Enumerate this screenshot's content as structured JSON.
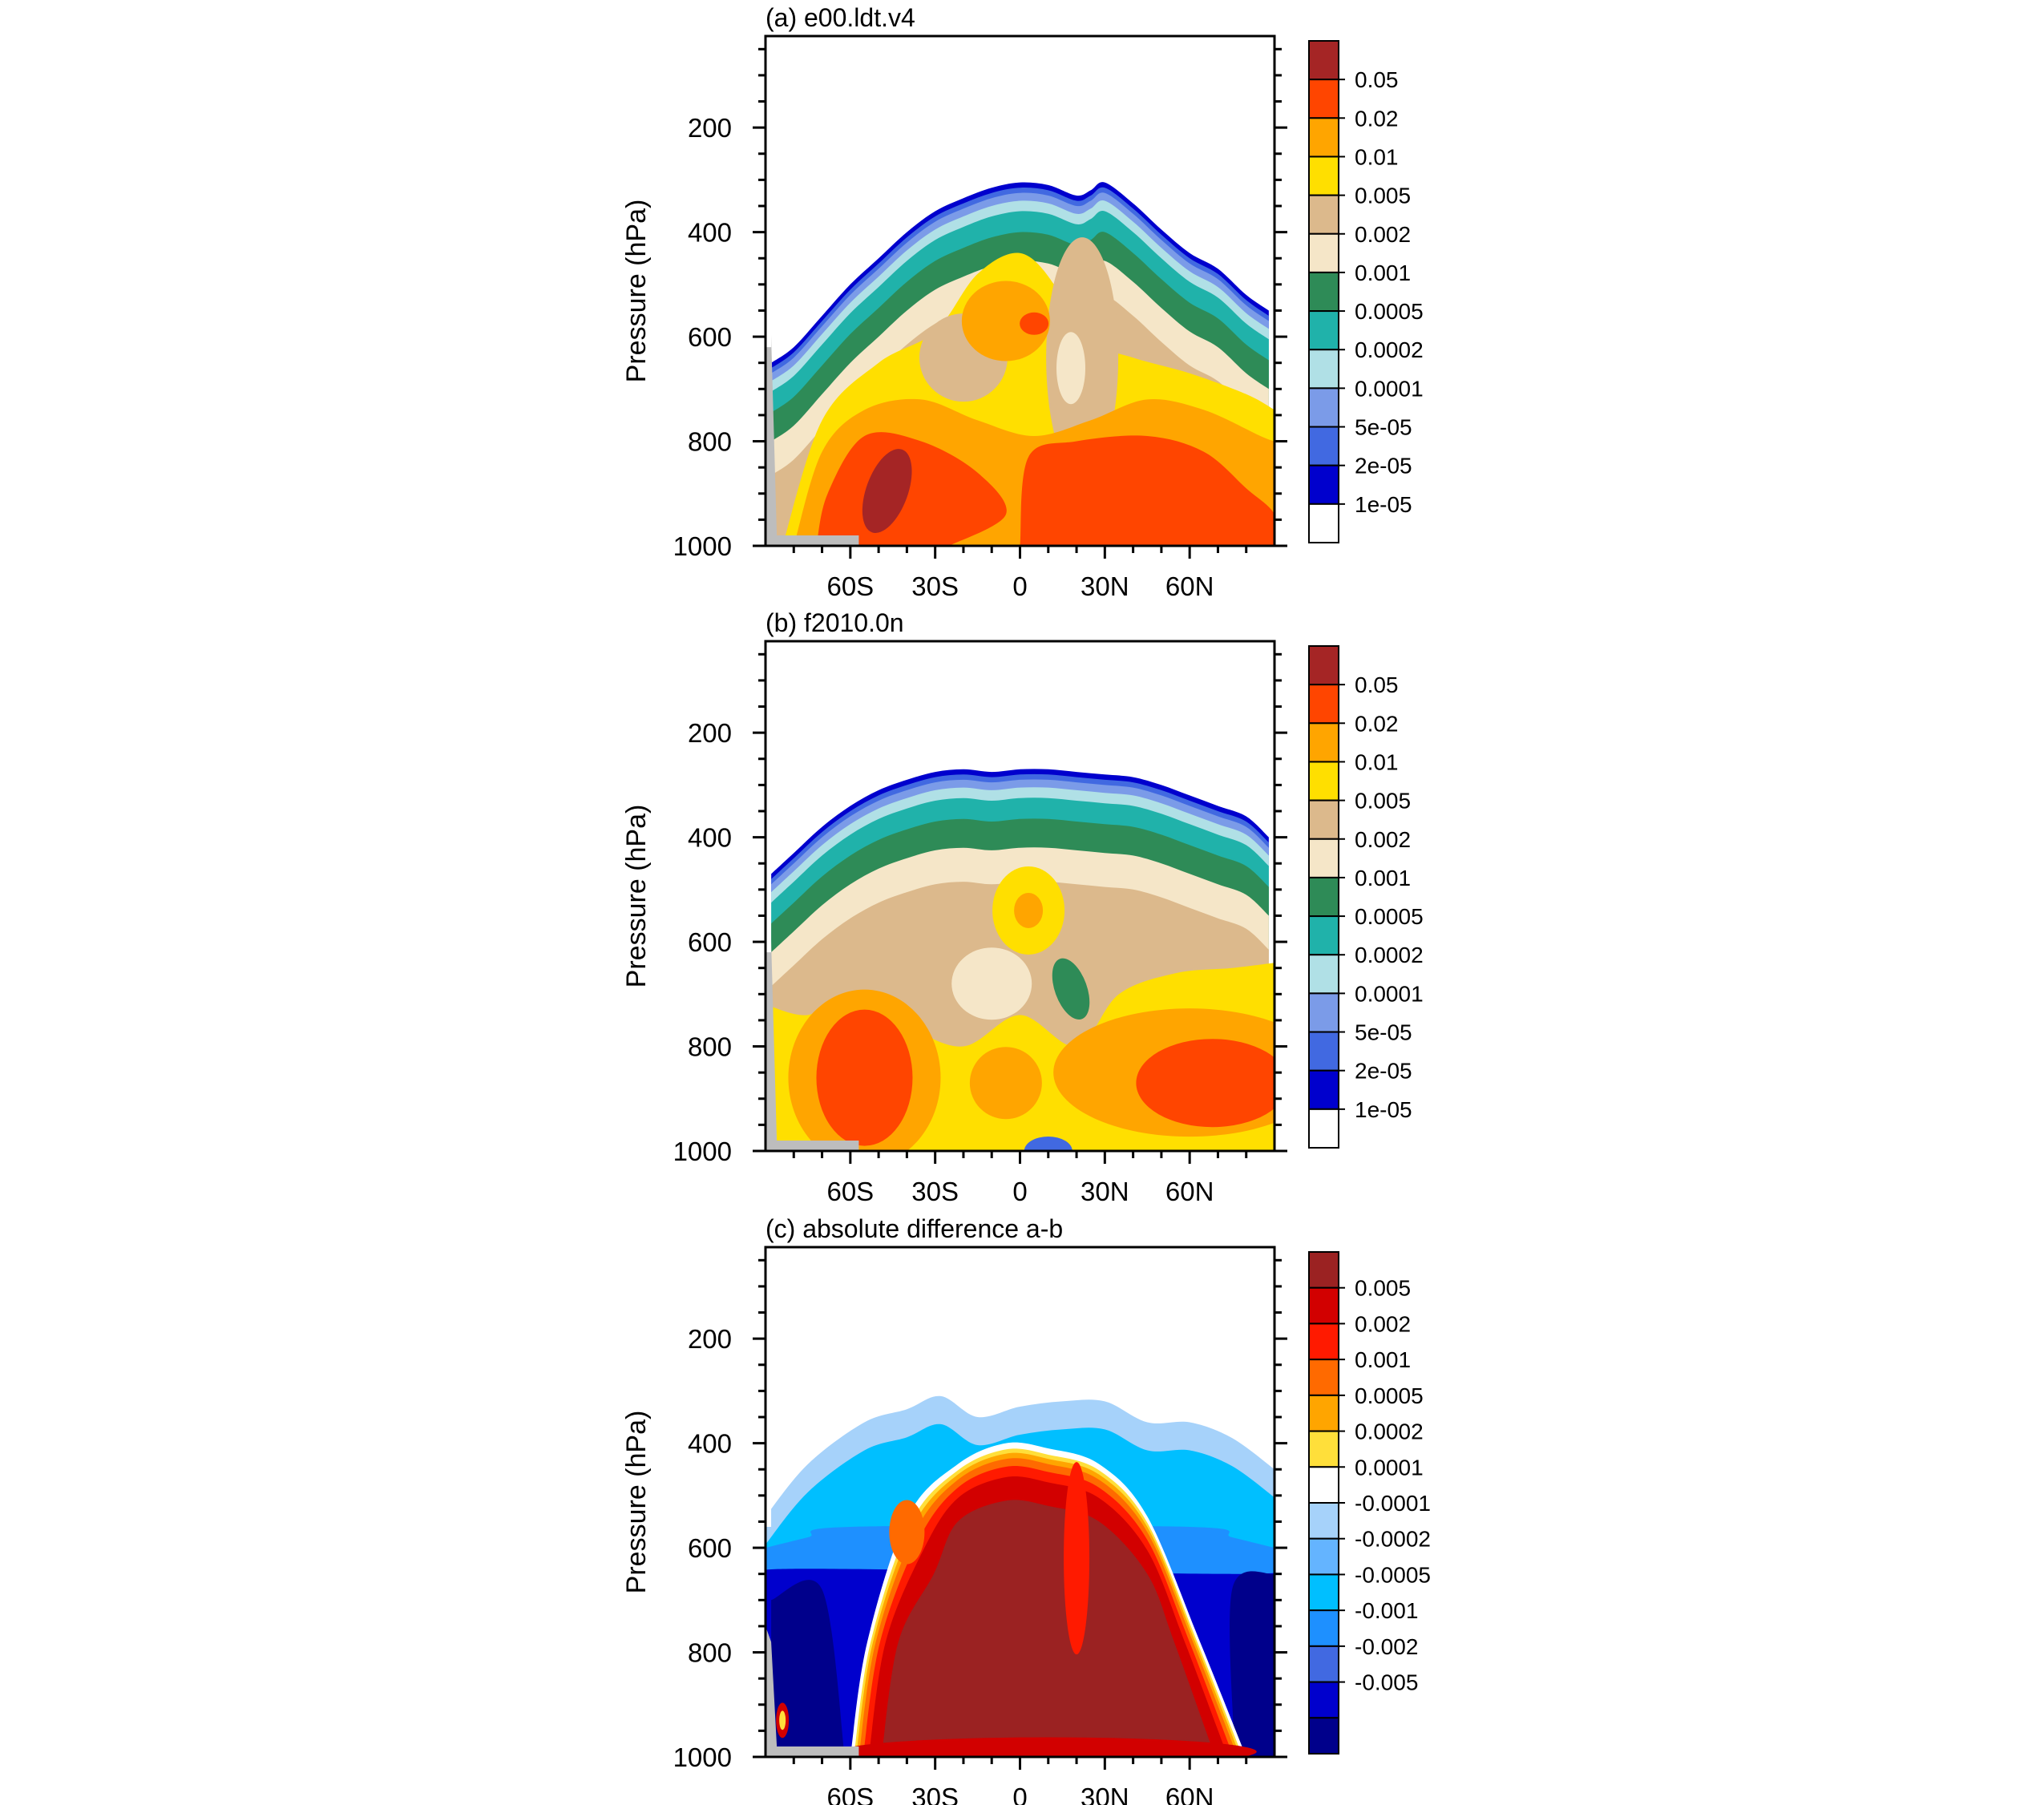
{
  "figure": {
    "panels": [
      {
        "title": "(a) e00.ldt.v4",
        "ylabel": "Pressure (hPa)",
        "colorbar_labels": [
          "0.05",
          "0.02",
          "0.01",
          "0.005",
          "0.002",
          "0.001",
          "0.0005",
          "0.0002",
          "0.0001",
          "5e-05",
          "2e-05",
          "1e-05"
        ],
        "colorbar_colors": [
          "#a52525",
          "#ff4500",
          "#ffa500",
          "#ffdf00",
          "#dcb98c",
          "#f5e6c8",
          "#2e8b57",
          "#20b2aa",
          "#b0e0e6",
          "#7b9be8",
          "#4169e1",
          "#0000cd",
          "#ffffff"
        ]
      },
      {
        "title": "(b) f2010.0n",
        "ylabel": "Pressure (hPa)",
        "colorbar_labels": [
          "0.05",
          "0.02",
          "0.01",
          "0.005",
          "0.002",
          "0.001",
          "0.0005",
          "0.0002",
          "0.0001",
          "5e-05",
          "2e-05",
          "1e-05"
        ],
        "colorbar_colors": [
          "#a52525",
          "#ff4500",
          "#ffa500",
          "#ffdf00",
          "#dcb98c",
          "#f5e6c8",
          "#2e8b57",
          "#20b2aa",
          "#b0e0e6",
          "#7b9be8",
          "#4169e1",
          "#0000cd",
          "#ffffff"
        ]
      },
      {
        "title": "(c) absolute difference a-b",
        "ylabel": "Pressure (hPa)",
        "colorbar_labels": [
          "0.005",
          "0.002",
          "0.001",
          "0.0005",
          "0.0002",
          "0.0001",
          "-0.0001",
          "-0.0002",
          "-0.0005",
          "-0.001",
          "-0.002",
          "-0.005"
        ],
        "colorbar_colors": [
          "#9b2222",
          "#d20000",
          "#ff1a00",
          "#ff6a00",
          "#ffa500",
          "#ffdf3a",
          "#ffffff",
          "#a6d2fa",
          "#64b4ff",
          "#00bfff",
          "#1e90ff",
          "#4169e1",
          "#0000cd",
          "#00008b"
        ]
      }
    ]
  },
  "chart_data": {
    "type": "heatmap",
    "x_tick_labels": [
      "60S",
      "30S",
      "0",
      "30N",
      "60N"
    ],
    "x_ticks": [
      -60,
      -30,
      0,
      30,
      60
    ],
    "xlim": [
      -90,
      90
    ],
    "y_tick_labels": [
      "200",
      "400",
      "600",
      "800",
      "1000"
    ],
    "y_ticks": [
      200,
      400,
      600,
      800,
      1000
    ],
    "ylim": [
      1000,
      25
    ],
    "ylabel": "Pressure (hPa)",
    "fields": [
      {
        "title": "(a) e00.ldt.v4",
        "top_boundary_hPa": {
          "lat": [
            -88,
            -80,
            -70,
            -60,
            -50,
            -40,
            -30,
            -20,
            -10,
            0,
            10,
            20,
            25,
            30,
            40,
            50,
            60,
            70,
            80,
            88
          ],
          "p": [
            650,
            620,
            560,
            500,
            450,
            400,
            360,
            335,
            315,
            305,
            310,
            330,
            320,
            305,
            345,
            395,
            440,
            470,
            520,
            550
          ]
        },
        "features": [
          "max >0.05 near 45S 900 hPa",
          "0.02 maxima near 5N 580 hPa",
          "0.02 region 30N-75N 800-950 hPa"
        ]
      },
      {
        "title": "(b) f2010.0n",
        "top_boundary_hPa": {
          "lat": [
            -88,
            -80,
            -70,
            -60,
            -50,
            -40,
            -30,
            -20,
            -10,
            0,
            10,
            20,
            30,
            40,
            50,
            60,
            70,
            80,
            88
          ],
          "p": [
            470,
            430,
            380,
            340,
            310,
            290,
            275,
            270,
            275,
            270,
            270,
            275,
            280,
            285,
            300,
            320,
            340,
            360,
            400
          ]
        },
        "features": [
          "0.02 region near 50S 800-900 hPa",
          "0.02 region 55N-80N 800-950 hPa",
          "0.0005 region near 20N 650 hPa"
        ]
      },
      {
        "title": "(c) absolute difference a-b",
        "features": [
          "positive >0.005 between 55S and 75N below 450 hPa",
          "negative -0.0001 to -0.0005 aloft 300-500 hPa",
          "negative < -0.005 at high latitudes below 600 hPa"
        ]
      }
    ]
  }
}
